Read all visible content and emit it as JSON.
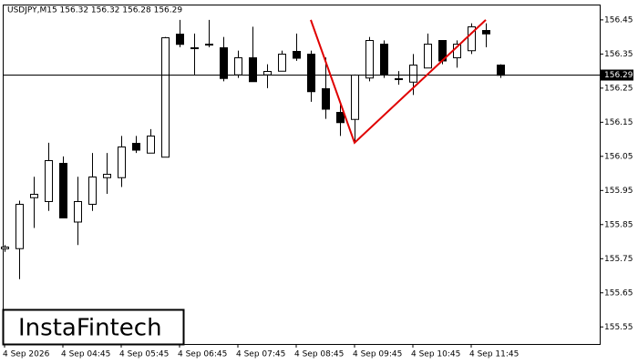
{
  "chart_data": {
    "type": "candlestick",
    "title": "USDJPY,M15  156.32 156.32 156.28 156.29",
    "brand": "InstaFintech",
    "categories": [
      "4 Sep 2026",
      null,
      null,
      null,
      "4 Sep 04:45",
      null,
      null,
      null,
      "4 Sep 05:45",
      null,
      null,
      null,
      "4 Sep 06:45",
      null,
      null,
      null,
      "4 Sep 07:45",
      null,
      null,
      null,
      "4 Sep 08:45",
      null,
      null,
      null,
      "4 Sep 09:45",
      null,
      null,
      null,
      "4 Sep 10:45",
      null,
      null,
      null,
      "4 Sep 11:45",
      null,
      null
    ],
    "open": [
      155.78,
      155.78,
      155.93,
      155.92,
      156.03,
      155.86,
      155.91,
      155.99,
      155.99,
      156.09,
      156.06,
      156.05,
      156.41,
      156.37,
      156.38,
      156.37,
      156.29,
      156.34,
      156.29,
      156.3,
      156.36,
      156.35,
      156.25,
      156.18,
      156.16,
      156.28,
      156.38,
      156.28,
      156.27,
      156.31,
      156.39,
      156.34,
      156.36,
      156.42,
      156.32
    ],
    "high": [
      155.79,
      155.92,
      155.99,
      156.09,
      156.05,
      155.99,
      156.06,
      156.06,
      156.11,
      156.11,
      156.13,
      156.4,
      156.45,
      156.41,
      156.45,
      156.4,
      156.36,
      156.43,
      156.32,
      156.36,
      156.41,
      156.36,
      156.34,
      156.21,
      156.29,
      156.4,
      156.39,
      156.3,
      156.35,
      156.41,
      156.39,
      156.39,
      156.44,
      156.44,
      156.32
    ],
    "low": [
      155.77,
      155.69,
      155.84,
      155.89,
      155.87,
      155.79,
      155.89,
      155.94,
      155.96,
      156.06,
      156.06,
      156.05,
      156.37,
      156.29,
      156.37,
      156.27,
      156.28,
      156.27,
      156.25,
      156.3,
      156.33,
      156.21,
      156.16,
      156.11,
      156.09,
      156.27,
      156.28,
      156.26,
      156.23,
      156.31,
      156.32,
      156.31,
      156.35,
      156.37,
      156.28
    ],
    "close": [
      155.785,
      155.91,
      155.94,
      156.04,
      155.87,
      155.92,
      155.99,
      156.0,
      156.08,
      156.07,
      156.11,
      156.4,
      156.38,
      156.37,
      156.38,
      156.28,
      156.34,
      156.27,
      156.3,
      156.35,
      156.34,
      156.24,
      156.19,
      156.15,
      156.29,
      156.39,
      156.29,
      156.28,
      156.32,
      156.38,
      156.33,
      156.38,
      156.43,
      156.41,
      156.29
    ],
    "up_color": "#ffffff",
    "down_color": "#000000",
    "last_price": 156.29,
    "pattern": {
      "color": "#e00000",
      "points": [
        {
          "index": 21,
          "price": 156.45
        },
        {
          "index": 24,
          "price": 156.09
        },
        {
          "index": 33,
          "price": 156.45
        }
      ]
    },
    "ylim": [
      155.5,
      156.495
    ],
    "yticks": [
      156.45,
      156.35,
      156.25,
      156.15,
      156.05,
      155.95,
      155.85,
      155.75,
      155.65,
      155.55
    ]
  }
}
